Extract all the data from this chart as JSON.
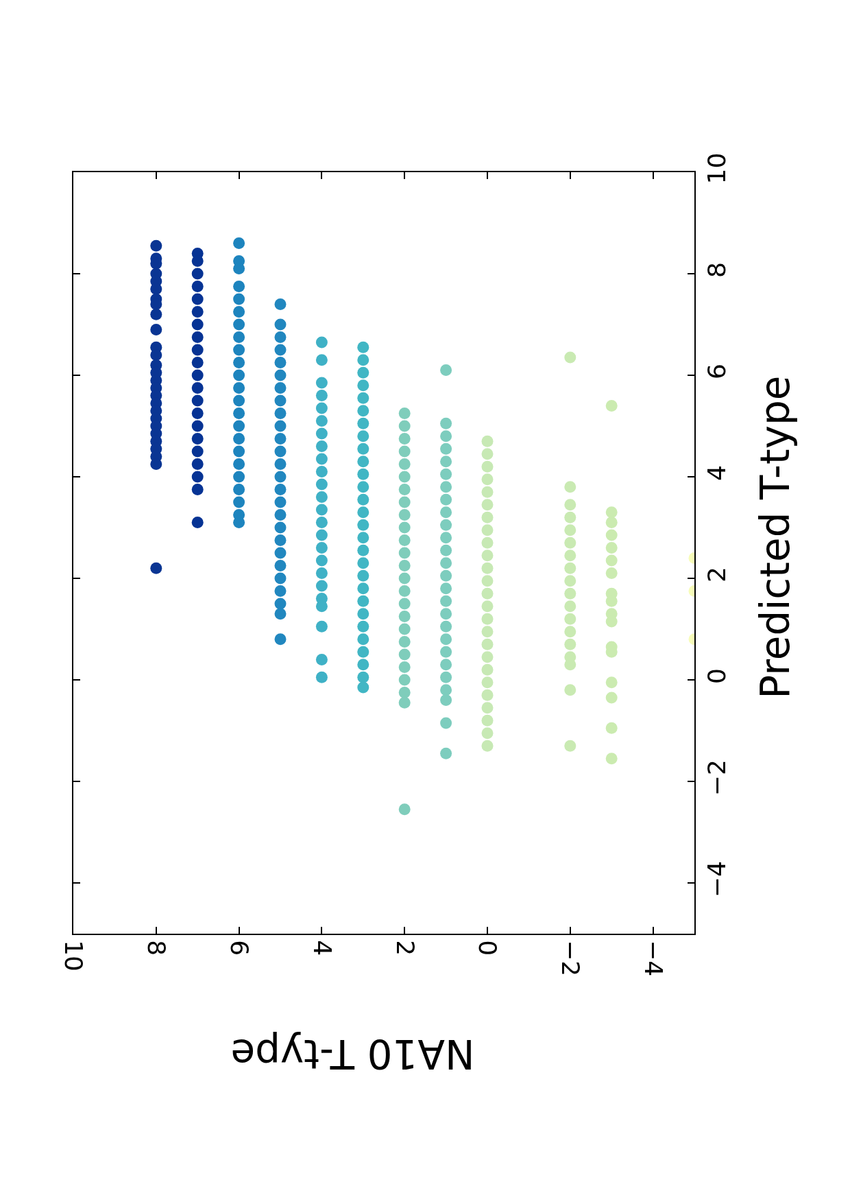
{
  "chart_data": {
    "type": "scatter",
    "xlabel": "NA10 T-type",
    "ylabel": "Predicted T-type",
    "marker": "circle",
    "xlim": [
      10,
      -5
    ],
    "xticks": [
      10,
      8,
      6,
      4,
      2,
      0,
      {
        "value": -2,
        "label": "−2"
      },
      {
        "value": -4,
        "label": "−4"
      }
    ],
    "ylim": [
      -5,
      10
    ],
    "yticks": [
      {
        "value": -4,
        "label": "−4"
      },
      {
        "value": -2,
        "label": "−2"
      },
      0,
      2,
      4,
      6,
      8,
      10
    ],
    "series": [
      {
        "color": "#0a3593",
        "x": [
          8,
          8,
          8,
          8,
          8,
          8,
          8,
          8,
          8,
          8,
          8,
          8,
          8,
          8,
          8,
          8,
          8,
          8,
          8,
          8,
          8,
          8,
          8,
          8,
          8,
          8,
          8
        ],
        "values": [
          8.55,
          8.3,
          8.2,
          8.0,
          7.85,
          7.7,
          7.5,
          7.4,
          7.2,
          6.9,
          6.55,
          6.4,
          6.2,
          6.05,
          5.9,
          5.75,
          5.6,
          5.45,
          5.3,
          5.15,
          5.0,
          4.85,
          4.7,
          4.55,
          4.4,
          4.25,
          2.2
        ]
      },
      {
        "color": "#063394",
        "x": [
          7,
          7,
          7,
          7,
          7,
          7,
          7,
          7,
          7,
          7,
          7,
          7,
          7,
          7,
          7,
          7,
          7,
          7,
          7,
          7,
          7
        ],
        "values": [
          8.4,
          8.25,
          8.0,
          7.75,
          7.5,
          7.25,
          7.0,
          6.75,
          6.5,
          6.25,
          6.0,
          5.75,
          5.5,
          5.25,
          5.0,
          4.75,
          4.5,
          4.25,
          4.0,
          3.75,
          3.1
        ]
      },
      {
        "color": "#1d84be",
        "x": [
          6,
          6,
          6,
          6,
          6,
          6,
          6,
          6,
          6,
          6,
          6,
          6,
          6,
          6,
          6,
          6,
          6,
          6,
          6,
          6,
          6,
          6,
          6
        ],
        "values": [
          8.6,
          8.25,
          8.1,
          7.75,
          7.5,
          7.25,
          7.0,
          6.75,
          6.5,
          6.25,
          6.0,
          5.75,
          5.5,
          5.25,
          5.0,
          4.75,
          4.5,
          4.25,
          4.0,
          3.75,
          3.5,
          3.25,
          3.1
        ]
      },
      {
        "color": "#2187bf",
        "x": [
          5,
          5,
          5,
          5,
          5,
          5,
          5,
          5,
          5,
          5,
          5,
          5,
          5,
          5,
          5,
          5,
          5,
          5,
          5,
          5,
          5,
          5,
          5,
          5,
          5,
          5
        ],
        "values": [
          7.4,
          7.0,
          6.75,
          6.5,
          6.25,
          6.0,
          5.75,
          5.5,
          5.25,
          5.0,
          4.75,
          4.5,
          4.25,
          4.0,
          3.75,
          3.5,
          3.25,
          3.0,
          2.75,
          2.5,
          2.25,
          2.0,
          1.75,
          1.5,
          1.3,
          0.8
        ]
      },
      {
        "color": "#3fb1c6",
        "x": [
          4,
          4,
          4,
          4,
          4,
          4,
          4,
          4,
          4,
          4,
          4,
          4,
          4,
          4,
          4,
          4,
          4,
          4,
          4,
          4,
          4,
          4,
          4,
          4
        ],
        "values": [
          6.65,
          6.3,
          5.85,
          5.6,
          5.35,
          5.1,
          4.85,
          4.6,
          4.35,
          4.1,
          3.85,
          3.6,
          3.35,
          3.1,
          2.85,
          2.6,
          2.35,
          2.1,
          1.85,
          1.6,
          1.45,
          1.05,
          0.4,
          0.05
        ]
      },
      {
        "color": "#41b6c4",
        "x": [
          3,
          3,
          3,
          3,
          3,
          3,
          3,
          3,
          3,
          3,
          3,
          3,
          3,
          3,
          3,
          3,
          3,
          3,
          3,
          3,
          3,
          3,
          3,
          3,
          3,
          3,
          3,
          3
        ],
        "values": [
          6.55,
          6.3,
          6.05,
          5.8,
          5.55,
          5.3,
          5.05,
          4.8,
          4.55,
          4.3,
          4.05,
          3.8,
          3.55,
          3.3,
          3.05,
          2.8,
          2.55,
          2.3,
          2.05,
          1.8,
          1.55,
          1.3,
          1.05,
          0.8,
          0.55,
          0.3,
          0.05,
          -0.15
        ]
      },
      {
        "color": "#7fcdbb",
        "x": [
          2,
          2,
          2,
          2,
          2,
          2,
          2,
          2,
          2,
          2,
          2,
          2,
          2,
          2,
          2,
          2,
          2,
          2,
          2,
          2,
          2,
          2,
          2,
          2,
          2
        ],
        "values": [
          5.25,
          5.0,
          4.75,
          4.5,
          4.25,
          4.0,
          3.75,
          3.5,
          3.25,
          3.0,
          2.75,
          2.5,
          2.25,
          2.0,
          1.75,
          1.5,
          1.25,
          1.0,
          0.75,
          0.5,
          0.25,
          0.0,
          -0.25,
          -0.45,
          -2.55
        ]
      },
      {
        "color": "#7dcdbe",
        "x": [
          1,
          1,
          1,
          1,
          1,
          1,
          1,
          1,
          1,
          1,
          1,
          1,
          1,
          1,
          1,
          1,
          1,
          1,
          1,
          1,
          1,
          1,
          1,
          1,
          1,
          1
        ],
        "values": [
          6.1,
          5.05,
          4.8,
          4.55,
          4.3,
          4.05,
          3.8,
          3.55,
          3.3,
          3.05,
          2.8,
          2.55,
          2.3,
          2.05,
          1.8,
          1.55,
          1.3,
          1.05,
          0.8,
          0.55,
          0.3,
          0.05,
          -0.2,
          -0.4,
          -0.85,
          -1.45
        ]
      },
      {
        "color": "#c7e9b4",
        "x": [
          0,
          0,
          0,
          0,
          0,
          0,
          0,
          0,
          0,
          0,
          0,
          0,
          0,
          0,
          0,
          0,
          0,
          0,
          0,
          0,
          0,
          0,
          0,
          0,
          0
        ],
        "values": [
          4.7,
          4.45,
          4.2,
          3.95,
          3.7,
          3.45,
          3.2,
          2.95,
          2.7,
          2.45,
          2.2,
          1.95,
          1.7,
          1.45,
          1.2,
          0.95,
          0.7,
          0.45,
          0.2,
          -0.05,
          -0.3,
          -0.55,
          -0.8,
          -1.05,
          -1.3
        ]
      },
      {
        "color": "#c9eab2",
        "x": [
          -2,
          -2,
          -2,
          -2,
          -2,
          -2,
          -2,
          -2,
          -2,
          -2,
          -2,
          -2,
          -2,
          -2,
          -2,
          -2,
          -2,
          -2
        ],
        "values": [
          6.35,
          3.8,
          3.45,
          3.2,
          2.95,
          2.7,
          2.45,
          2.2,
          1.95,
          1.7,
          1.45,
          1.2,
          0.95,
          0.7,
          0.45,
          0.3,
          -0.2,
          -1.3
        ]
      },
      {
        "color": "#cbebb0",
        "x": [
          -3,
          -3,
          -3,
          -3,
          -3,
          -3,
          -3,
          -3,
          -3,
          -3,
          -3,
          -3,
          -3,
          -3,
          -3,
          -3,
          -3
        ],
        "values": [
          5.4,
          3.3,
          3.1,
          2.85,
          2.6,
          2.35,
          2.1,
          1.7,
          1.55,
          1.3,
          1.15,
          0.65,
          0.55,
          -0.05,
          -0.35,
          -0.95,
          -1.55
        ]
      },
      {
        "color": "#f7fcb9",
        "x": [
          -5,
          -5,
          -5
        ],
        "values": [
          2.4,
          1.75,
          0.8
        ]
      }
    ]
  }
}
